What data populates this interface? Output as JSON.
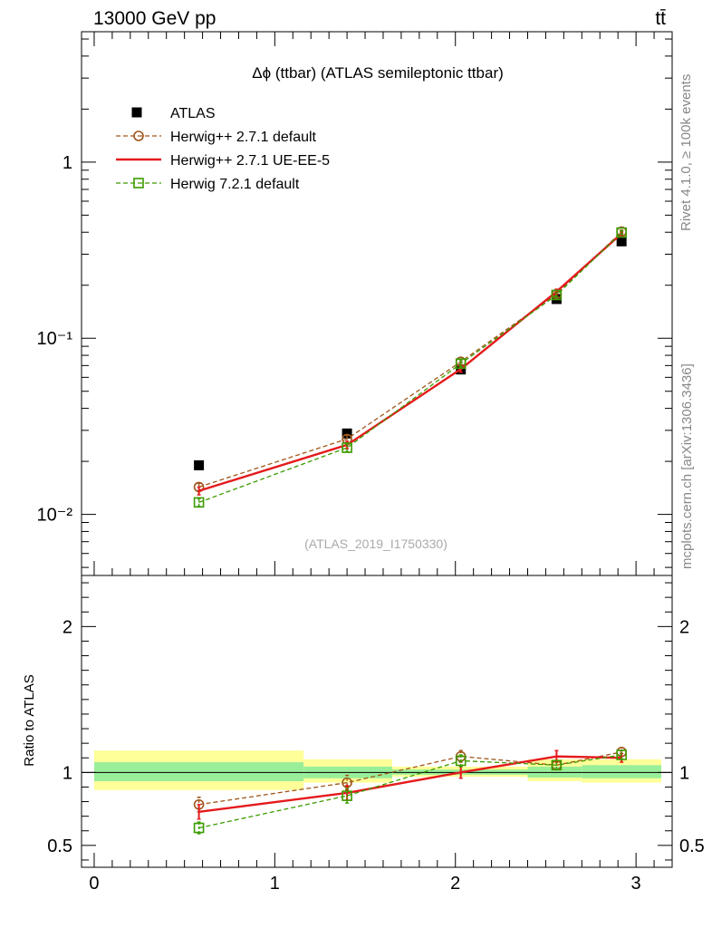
{
  "header": {
    "energy_label": "13000 GeV pp",
    "process_label": "tt̄"
  },
  "side_labels": {
    "rivet": "Rivet 4.1.0, ≥ 100k events",
    "mcplots": "mcplots.cern.ch [arXiv:1306.3436]"
  },
  "chart_data": [
    {
      "type": "line",
      "panel": "main",
      "title": "Δϕ (ttbar) (ATLAS semileptonic ttbar)",
      "watermark": "(ATLAS_2019_I1750330)",
      "yscale": "log",
      "xlim": [
        -0.07,
        3.2
      ],
      "ylim": [
        0.0045,
        5.5
      ],
      "x": [
        0.58,
        1.4,
        2.03,
        2.56,
        2.92
      ],
      "ytick_labels": [
        "10⁻²",
        "10⁻¹",
        "1"
      ],
      "ytick_values": [
        0.01,
        0.1,
        1
      ],
      "series": [
        {
          "name": "ATLAS",
          "style": "data",
          "color": "#000000",
          "values": [
            0.019,
            0.0288,
            0.0665,
            0.167,
            0.355
          ]
        },
        {
          "name": "Herwig++ 2.7.1 default",
          "style": "circle",
          "color": "#a0561a",
          "values": [
            0.0143,
            0.0268,
            0.0735,
            0.178,
            0.403
          ],
          "errors": [
            0.0007,
            0.0013,
            0.0028,
            0.005,
            0.008
          ]
        },
        {
          "name": "Herwig++ 2.7.1 UE-EE-5",
          "style": "solid",
          "color": "#e41a1c",
          "values": [
            0.0136,
            0.0248,
            0.0668,
            0.184,
            0.393
          ],
          "errors": [
            0.0007,
            0.0012,
            0.0027,
            0.006,
            0.009
          ]
        },
        {
          "name": "Herwig 7.2.1 default",
          "style": "square",
          "color": "#3c9b00",
          "values": [
            0.0117,
            0.0239,
            0.0718,
            0.176,
            0.398
          ],
          "errors": [
            0.0006,
            0.0012,
            0.0028,
            0.005,
            0.009
          ]
        }
      ]
    },
    {
      "type": "line",
      "panel": "ratio",
      "ylabel": "Ratio to ATLAS",
      "ylim": [
        0.35,
        2.35
      ],
      "xlim": [
        -0.07,
        3.2
      ],
      "ytick_labels": [
        "0.5",
        "1",
        "2"
      ],
      "ytick_values": [
        0.5,
        1,
        2
      ],
      "xtick_labels": [
        "0",
        "1",
        "2",
        "3"
      ],
      "xtick_values": [
        0,
        1,
        2,
        3
      ],
      "x": [
        0.58,
        1.4,
        2.03,
        2.56,
        2.92
      ],
      "bands": [
        {
          "x0": 0.0,
          "x1": 1.16,
          "yellow": [
            0.88,
            1.15
          ],
          "green": [
            0.94,
            1.07
          ]
        },
        {
          "x0": 1.16,
          "x1": 1.65,
          "yellow": [
            0.93,
            1.09
          ],
          "green": [
            0.96,
            1.04
          ]
        },
        {
          "x0": 1.65,
          "x1": 2.4,
          "yellow": [
            0.97,
            1.04
          ],
          "green": [
            0.985,
            1.02
          ]
        },
        {
          "x0": 2.4,
          "x1": 2.7,
          "yellow": [
            0.94,
            1.09
          ],
          "green": [
            0.965,
            1.04
          ]
        },
        {
          "x0": 2.7,
          "x1": 3.14,
          "yellow": [
            0.93,
            1.09
          ],
          "green": [
            0.96,
            1.05
          ]
        }
      ],
      "series": [
        {
          "name": "Herwig++ 2.7.1 default",
          "style": "circle",
          "color": "#a0561a",
          "values": [
            0.78,
            0.93,
            1.11,
            1.05,
            1.14
          ],
          "errors": [
            0.05,
            0.05,
            0.04,
            0.03,
            0.03
          ]
        },
        {
          "name": "Herwig++ 2.7.1 UE-EE-5",
          "style": "solid",
          "color": "#e41a1c",
          "values": [
            0.73,
            0.86,
            1.0,
            1.11,
            1.1
          ],
          "errors": [
            0.05,
            0.05,
            0.04,
            0.04,
            0.03
          ]
        },
        {
          "name": "Herwig 7.2.1 default",
          "style": "square",
          "color": "#3c9b00",
          "values": [
            0.62,
            0.84,
            1.08,
            1.05,
            1.12
          ],
          "errors": [
            0.04,
            0.05,
            0.04,
            0.03,
            0.03
          ]
        }
      ]
    }
  ]
}
